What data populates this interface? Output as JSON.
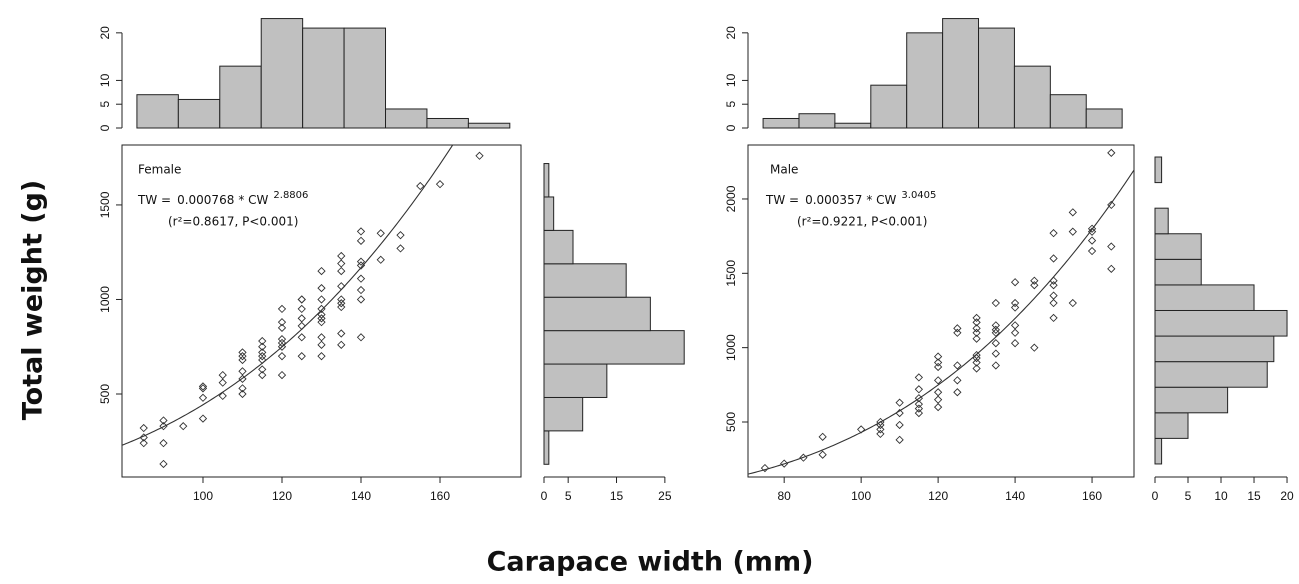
{
  "figure": {
    "ylabel": "Total weight (g)",
    "xlabel": "Carapace width (mm)"
  },
  "chart_data": [
    {
      "type": "scatter",
      "annotation": "Female",
      "equation": {
        "lhs": "TW =",
        "coefficient": 0.000768,
        "operator": "* CW",
        "exponent": 2.8806
      },
      "stats": "(r²=0.8617, P<0.001)",
      "x": [
        85,
        85,
        85,
        90,
        90,
        90,
        90,
        95,
        100,
        100,
        100,
        100,
        105,
        105,
        105,
        110,
        110,
        110,
        110,
        110,
        110,
        110,
        115,
        115,
        115,
        115,
        115,
        115,
        115,
        120,
        120,
        120,
        120,
        120,
        120,
        120,
        120,
        125,
        125,
        125,
        125,
        125,
        125,
        125,
        130,
        130,
        130,
        130,
        130,
        130,
        130,
        130,
        130,
        130,
        135,
        135,
        135,
        135,
        135,
        135,
        135,
        135,
        135,
        140,
        140,
        140,
        140,
        140,
        140,
        140,
        140,
        145,
        145,
        150,
        150,
        155,
        160,
        170
      ],
      "y": [
        320,
        270,
        240,
        360,
        330,
        240,
        130,
        330,
        540,
        530,
        480,
        370,
        600,
        560,
        490,
        720,
        700,
        680,
        620,
        580,
        530,
        500,
        780,
        750,
        720,
        700,
        680,
        630,
        600,
        950,
        880,
        850,
        790,
        770,
        750,
        700,
        600,
        1000,
        1000,
        950,
        900,
        860,
        800,
        700,
        1150,
        1060,
        1000,
        950,
        920,
        900,
        880,
        800,
        760,
        700,
        1230,
        1190,
        1150,
        1070,
        1000,
        980,
        960,
        820,
        760,
        1360,
        1310,
        1200,
        1180,
        1110,
        1050,
        1000,
        800,
        1350,
        1210,
        1340,
        1270,
        1600,
        1610,
        1760
      ],
      "xlim": [
        79.5,
        180.5
      ],
      "ylim": [
        61,
        1817
      ],
      "xticks": [
        100,
        120,
        140,
        160
      ],
      "yticks": [
        500,
        1000,
        1500
      ]
    },
    {
      "type": "histogram",
      "orientation": "vertical",
      "color": "#c0c0c0",
      "bins": [
        80,
        90,
        100,
        110,
        120,
        130,
        140,
        150,
        160,
        170
      ],
      "values": [
        7,
        6,
        13,
        23,
        21,
        21,
        4,
        2,
        1
      ],
      "xlim": [
        76.4,
        172.7
      ],
      "ylim": [
        0,
        24.8
      ],
      "yticks": [
        0,
        5,
        10,
        20
      ]
    },
    {
      "type": "histogram",
      "orientation": "horizontal",
      "color": "#c0c0c0",
      "bins": [
        0,
        200,
        400,
        600,
        800,
        1000,
        1200,
        1400,
        1600,
        1800
      ],
      "values": [
        1,
        8,
        13,
        29,
        22,
        17,
        6,
        2,
        1
      ],
      "ylim": [
        -76,
        1911
      ],
      "xlim": [
        0,
        30.2
      ],
      "xticks": [
        0,
        5,
        15,
        25
      ]
    },
    {
      "type": "scatter",
      "annotation": "Male",
      "equation": {
        "lhs": "TW =",
        "coefficient": 0.000357,
        "operator": "* CW",
        "exponent": 3.0405
      },
      "stats": "(r²=0.9221, P<0.001)",
      "x": [
        75,
        80,
        85,
        90,
        90,
        100,
        105,
        105,
        105,
        105,
        110,
        110,
        110,
        110,
        115,
        115,
        115,
        115,
        115,
        115,
        120,
        120,
        120,
        120,
        120,
        120,
        120,
        125,
        125,
        125,
        125,
        125,
        130,
        130,
        130,
        130,
        130,
        130,
        130,
        130,
        130,
        135,
        135,
        135,
        135,
        135,
        135,
        135,
        140,
        140,
        140,
        140,
        140,
        140,
        145,
        145,
        145,
        150,
        150,
        150,
        150,
        150,
        150,
        150,
        155,
        155,
        155,
        160,
        160,
        160,
        160,
        165,
        165,
        165,
        165
      ],
      "y": [
        190,
        220,
        260,
        400,
        280,
        450,
        500,
        480,
        450,
        420,
        630,
        560,
        480,
        380,
        800,
        720,
        660,
        620,
        590,
        560,
        940,
        900,
        870,
        780,
        700,
        650,
        600,
        1130,
        1100,
        880,
        780,
        700,
        1200,
        1170,
        1130,
        1100,
        1060,
        950,
        930,
        900,
        860,
        1300,
        1150,
        1120,
        1100,
        1030,
        960,
        880,
        1440,
        1300,
        1270,
        1150,
        1100,
        1030,
        1450,
        1420,
        1000,
        1770,
        1600,
        1450,
        1420,
        1350,
        1300,
        1200,
        1910,
        1780,
        1300,
        1800,
        1780,
        1720,
        1650,
        2310,
        1960,
        1680,
        1530
      ],
      "xlim": [
        70.6,
        170.9
      ],
      "ylim": [
        130,
        2363
      ],
      "xticks": [
        80,
        100,
        120,
        140,
        160
      ],
      "yticks": [
        500,
        1000,
        1500,
        2000
      ]
    },
    {
      "type": "histogram",
      "orientation": "vertical",
      "color": "#c0c0c0",
      "bins": [
        70,
        80,
        90,
        100,
        110,
        120,
        130,
        140,
        150,
        160,
        170
      ],
      "values": [
        2,
        3,
        1,
        9,
        20,
        23,
        21,
        13,
        7,
        4
      ],
      "xlim": [
        65.8,
        173.3
      ],
      "ylim": [
        0,
        24.8
      ],
      "yticks": [
        0,
        5,
        10,
        20
      ]
    },
    {
      "type": "histogram",
      "orientation": "horizontal",
      "color": "#c0c0c0",
      "bins": [
        0,
        200,
        400,
        600,
        800,
        1000,
        1200,
        1400,
        1600,
        1800,
        2000,
        2200,
        2400
      ],
      "values": [
        1,
        5,
        11,
        17,
        18,
        20,
        15,
        7,
        7,
        2,
        0,
        1
      ],
      "ylim": [
        -102,
        2494
      ],
      "xlim": [
        0,
        20.45
      ],
      "xticks": [
        0,
        5,
        10,
        15,
        20
      ]
    }
  ]
}
